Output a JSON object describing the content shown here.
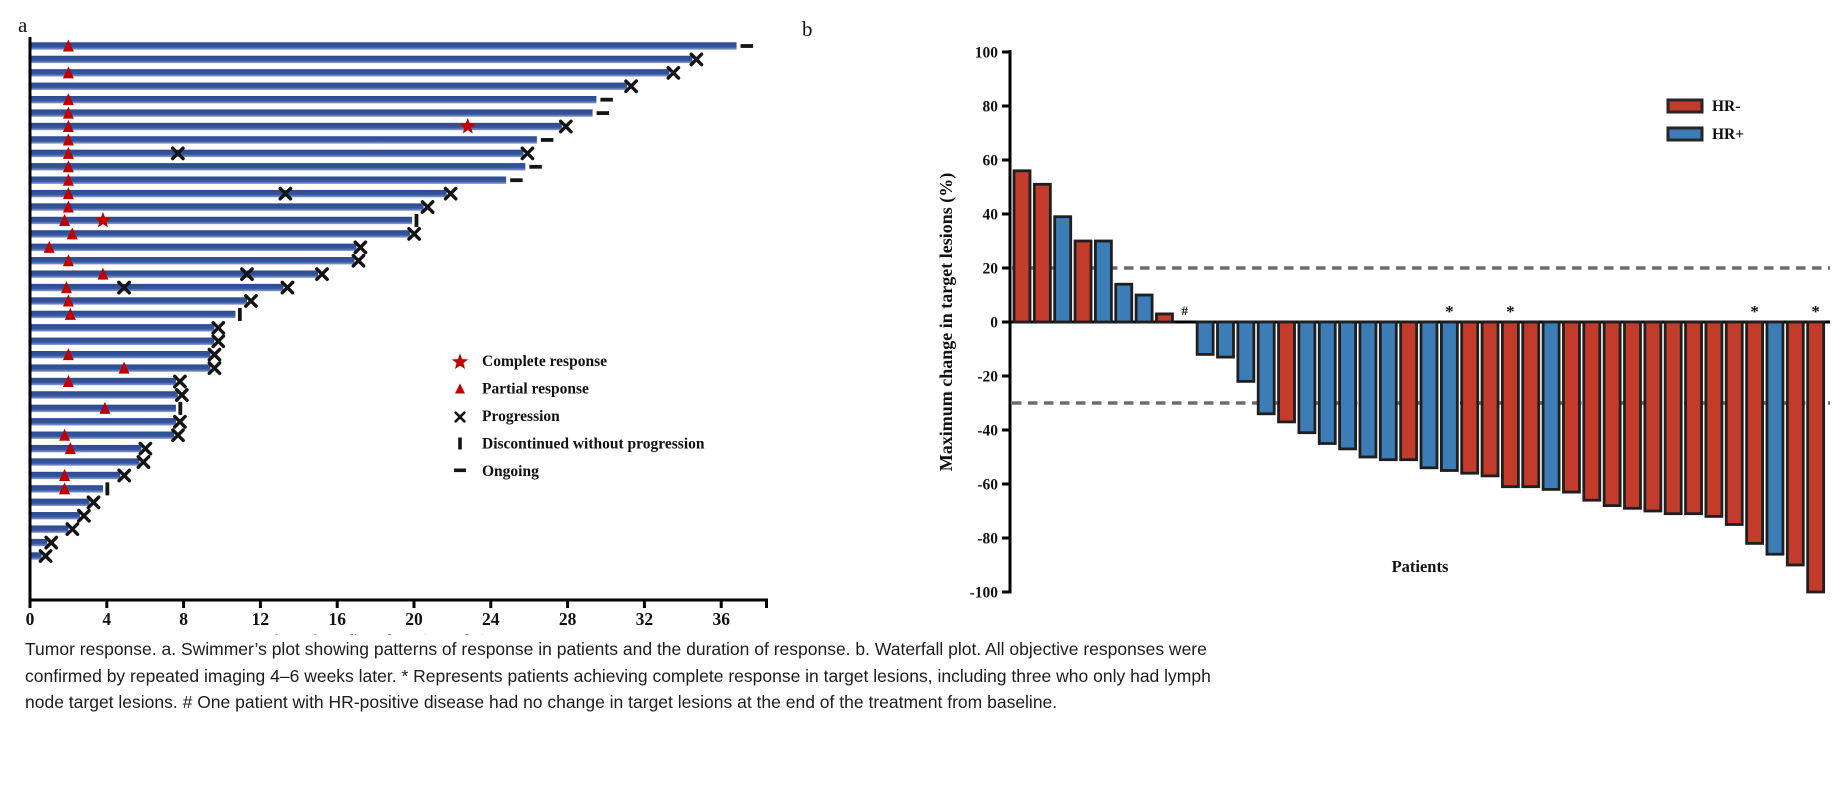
{
  "figure": {
    "panel_a_label": "a",
    "panel_b_label": "b"
  },
  "chart_data": [
    {
      "type": "bar",
      "subtype": "swimmer",
      "panel": "a",
      "xlabel": "Time since first dose (months)",
      "xticks": [
        0,
        4,
        8,
        12,
        16,
        20,
        24,
        28,
        32,
        36
      ],
      "xlim": [
        0,
        38.5
      ],
      "bar_color": "#34549E",
      "marker_red": "#C00000",
      "marker_black": "#141414",
      "legend": [
        {
          "symbol": "star",
          "label": "Complete response"
        },
        {
          "symbol": "triangle",
          "label": "Partial response"
        },
        {
          "symbol": "x",
          "label": "Progression"
        },
        {
          "symbol": "vbar",
          "label": "Discontinued without progression"
        },
        {
          "symbol": "hbar",
          "label": "Ongoing"
        }
      ],
      "rows": [
        {
          "pr": 2.0,
          "len": 36.8,
          "end": "ongoing"
        },
        {
          "len": 34.5,
          "end": "x"
        },
        {
          "pr": 2.0,
          "len": 33.3,
          "end": "x"
        },
        {
          "len": 31.1,
          "end": "x"
        },
        {
          "pr": 2.0,
          "len": 29.5,
          "end": "ongoing"
        },
        {
          "pr": 2.0,
          "len": 29.3,
          "end": "ongoing"
        },
        {
          "pr": 2.0,
          "cr": 22.8,
          "len": 27.7,
          "end": "x"
        },
        {
          "pr": 2.0,
          "len": 26.4,
          "end": "ongoing"
        },
        {
          "pr": 2.0,
          "xs": [
            7.7
          ],
          "len": 25.7,
          "end": "x"
        },
        {
          "pr": 2.0,
          "len": 25.8,
          "end": "ongoing"
        },
        {
          "pr": 2.0,
          "len": 24.8,
          "end": "ongoing"
        },
        {
          "pr": 2.0,
          "xs": [
            13.3
          ],
          "len": 21.7,
          "end": "x"
        },
        {
          "pr": 2.0,
          "len": 20.5,
          "end": "x"
        },
        {
          "pr": 1.8,
          "cr": 3.8,
          "len": 19.9,
          "end": "disc"
        },
        {
          "pr": 2.2,
          "len": 19.8,
          "end": "x"
        },
        {
          "pr": 1.0,
          "len": 17.0,
          "end": "x"
        },
        {
          "pr": 2.0,
          "len": 16.9,
          "end": "x"
        },
        {
          "pr": 3.8,
          "xs": [
            11.3
          ],
          "len": 15.0,
          "end": "x"
        },
        {
          "pr": 1.9,
          "xs": [
            4.9
          ],
          "len": 13.2,
          "end": "x"
        },
        {
          "pr": 2.0,
          "len": 11.3,
          "end": "x"
        },
        {
          "pr": 2.1,
          "len": 10.7,
          "end": "disc"
        },
        {
          "len": 9.6,
          "end": "x"
        },
        {
          "len": 9.6,
          "end": "x"
        },
        {
          "pr": 2.0,
          "len": 9.4,
          "end": "x"
        },
        {
          "pr": 4.9,
          "len": 9.4,
          "end": "x"
        },
        {
          "pr": 2.0,
          "len": 7.6,
          "end": "x"
        },
        {
          "len": 7.7,
          "end": "x"
        },
        {
          "pr": 3.9,
          "len": 7.6,
          "end": "disc"
        },
        {
          "len": 7.6,
          "end": "x"
        },
        {
          "pr": 1.8,
          "len": 7.5,
          "end": "x"
        },
        {
          "pr": 2.1,
          "len": 5.8,
          "end": "x"
        },
        {
          "len": 5.7,
          "end": "x"
        },
        {
          "pr": 1.8,
          "len": 4.7,
          "end": "x"
        },
        {
          "pr": 1.8,
          "len": 3.8,
          "end": "disc"
        },
        {
          "len": 3.1,
          "end": "x"
        },
        {
          "len": 2.6,
          "end": "x"
        },
        {
          "len": 2.0,
          "end": "x"
        },
        {
          "len": 0.9,
          "end": "x"
        },
        {
          "len": 0.6,
          "end": "x"
        }
      ]
    },
    {
      "type": "bar",
      "subtype": "waterfall",
      "panel": "b",
      "ylabel": "Maximum change in target lesions (%)",
      "xlabel": "Patients",
      "ylim": [
        -100,
        100
      ],
      "yticks": [
        100,
        80,
        60,
        40,
        20,
        0,
        -20,
        -40,
        -60,
        -80,
        -100
      ],
      "ref_lines": [
        20,
        -30
      ],
      "ref_line_color": "#6b6b6b",
      "outline_color": "#1f1f1f",
      "legend": [
        {
          "label": "HR-",
          "color": "#C23B2B"
        },
        {
          "label": "HR+",
          "color": "#3D7DB7"
        }
      ],
      "bars": [
        {
          "value": 56,
          "group": "HR-"
        },
        {
          "value": 51,
          "group": "HR-"
        },
        {
          "value": 39,
          "group": "HR+"
        },
        {
          "value": 30,
          "group": "HR-"
        },
        {
          "value": 30,
          "group": "HR+"
        },
        {
          "value": 14,
          "group": "HR+"
        },
        {
          "value": 10,
          "group": "HR+"
        },
        {
          "value": 3,
          "group": "HR-"
        },
        {
          "value": 0,
          "group": "HR+",
          "flag": "#"
        },
        {
          "value": -12,
          "group": "HR+"
        },
        {
          "value": -13,
          "group": "HR+"
        },
        {
          "value": -22,
          "group": "HR+"
        },
        {
          "value": -34,
          "group": "HR+"
        },
        {
          "value": -37,
          "group": "HR-"
        },
        {
          "value": -41,
          "group": "HR+"
        },
        {
          "value": -45,
          "group": "HR+"
        },
        {
          "value": -47,
          "group": "HR+"
        },
        {
          "value": -50,
          "group": "HR+"
        },
        {
          "value": -51,
          "group": "HR+"
        },
        {
          "value": -51,
          "group": "HR-"
        },
        {
          "value": -54,
          "group": "HR+"
        },
        {
          "value": -55,
          "group": "HR+",
          "flag": "*"
        },
        {
          "value": -56,
          "group": "HR-"
        },
        {
          "value": -57,
          "group": "HR-"
        },
        {
          "value": -61,
          "group": "HR-",
          "flag": "*"
        },
        {
          "value": -61,
          "group": "HR-"
        },
        {
          "value": -62,
          "group": "HR+"
        },
        {
          "value": -63,
          "group": "HR-"
        },
        {
          "value": -66,
          "group": "HR-"
        },
        {
          "value": -68,
          "group": "HR-"
        },
        {
          "value": -69,
          "group": "HR-"
        },
        {
          "value": -70,
          "group": "HR-"
        },
        {
          "value": -71,
          "group": "HR-"
        },
        {
          "value": -71,
          "group": "HR-"
        },
        {
          "value": -72,
          "group": "HR-"
        },
        {
          "value": -75,
          "group": "HR-"
        },
        {
          "value": -82,
          "group": "HR-",
          "flag": "*"
        },
        {
          "value": -86,
          "group": "HR+"
        },
        {
          "value": -90,
          "group": "HR-"
        },
        {
          "value": -100,
          "group": "HR-",
          "flag": "*"
        }
      ]
    }
  ],
  "caption": {
    "lines": [
      "Tumor response. a. Swimmer’s plot showing patterns of response in patients and the duration of response. b. Waterfall plot. All objective responses were",
      "confirmed by repeated imaging 4–6 weeks later. * Represents patients achieving complete response in target lesions, including three who only had lymph",
      "node target lesions. # One patient with HR-positive disease had no change in target lesions at the end of the treatment from baseline."
    ]
  }
}
